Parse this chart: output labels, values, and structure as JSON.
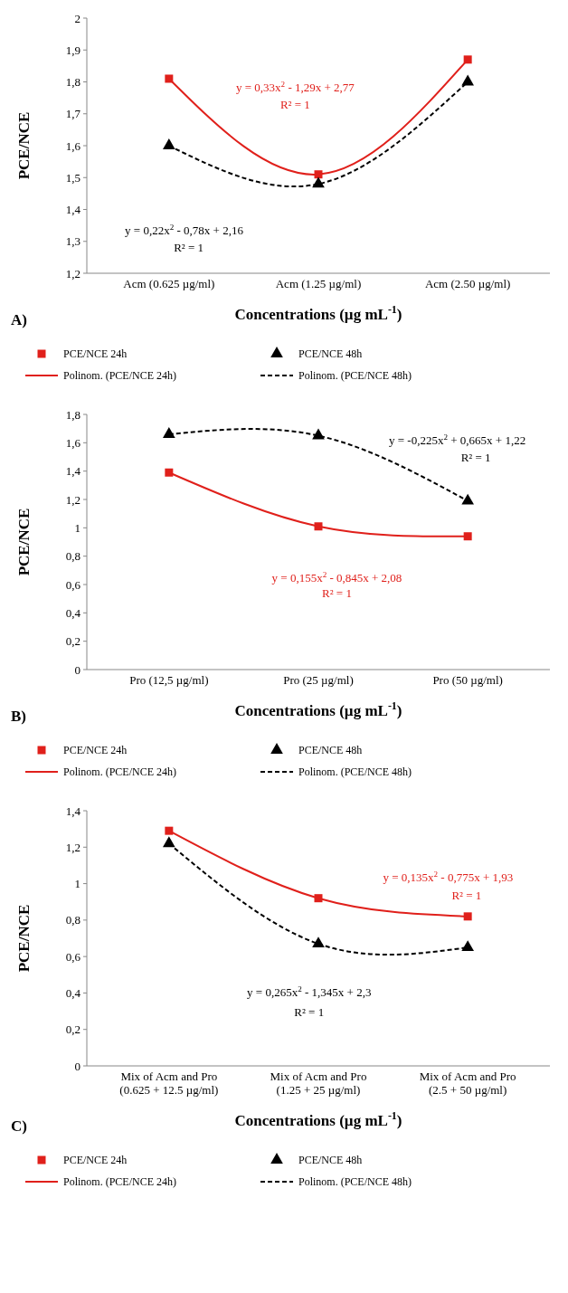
{
  "chart_data": [
    {
      "type": "scatter",
      "title": "A)",
      "xlabel": "Concentrations (µg mL$^{-1}$)",
      "ylabel": "PCE/NCE",
      "categories": [
        "Acm (0.625 µg/ml)",
        "Acm (1.25 µg/ml)",
        "Acm (2.50 µg/ml)"
      ],
      "ylim": [
        1.2,
        2
      ],
      "yticks": [
        {
          "value": 1.2,
          "label": "1,2"
        },
        {
          "value": 1.3,
          "label": "1,3"
        },
        {
          "value": 1.4,
          "label": "1,4"
        },
        {
          "value": 1.5,
          "label": "1,5"
        },
        {
          "value": 1.6,
          "label": "1,6"
        },
        {
          "value": 1.7,
          "label": "1,7"
        },
        {
          "value": 1.8,
          "label": "1,8"
        },
        {
          "value": 1.9,
          "label": "1,9"
        },
        2
      ],
      "legend": "bottom",
      "series": [
        {
          "name": "PCE/NCE 24h",
          "color": "#e0201b",
          "marker": "square",
          "values": [
            1.81,
            1.51,
            1.87
          ]
        },
        {
          "name": "PCE/NCE 48h",
          "color": "#000000",
          "marker": "triangle",
          "values": [
            1.6,
            1.48,
            1.8
          ]
        },
        {
          "name": "Polinom. (PCE/NCE 24h)",
          "type": "line",
          "color": "#e0201b",
          "line_style": "solid",
          "values": [
            1.81,
            1.51,
            1.87
          ]
        },
        {
          "name": "Polinom. (PCE/NCE 48h)",
          "type": "line",
          "color": "#000000",
          "line_style": "dashed",
          "values": [
            1.6,
            1.48,
            1.8
          ]
        }
      ],
      "annotations": [
        "y = 0,33x$^{2}$ - 1,29x + 2,77",
        "R² = 1",
        "y = 0,22x$^{2}$ - 0,78x + 2,16",
        "R² = 1"
      ]
    },
    {
      "type": "scatter",
      "title": "B)",
      "xlabel": "Concentrations (µg mL$^{-1}$)",
      "ylabel": "PCE/NCE",
      "categories": [
        "Pro (12,5 µg/ml)",
        "Pro (25 µg/ml)",
        "Pro (50 µg/ml)"
      ],
      "ylim": [
        0,
        1.8
      ],
      "yticks": [
        0,
        {
          "value": 0.2,
          "label": "0,2"
        },
        {
          "value": 0.4,
          "label": "0,4"
        },
        {
          "value": 0.6,
          "label": "0,6"
        },
        {
          "value": 0.8,
          "label": "0,8"
        },
        1,
        {
          "value": 1.2,
          "label": "1,2"
        },
        {
          "value": 1.4,
          "label": "1,4"
        },
        {
          "value": 1.6,
          "label": "1,6"
        },
        {
          "value": 1.8,
          "label": "1,8"
        }
      ],
      "legend": "bottom",
      "series": [
        {
          "name": "PCE/NCE 24h",
          "color": "#e0201b",
          "marker": "square",
          "values": [
            1.39,
            1.01,
            0.94
          ]
        },
        {
          "name": "PCE/NCE 48h",
          "color": "#000000",
          "marker": "triangle",
          "values": [
            1.66,
            1.65,
            1.19
          ]
        },
        {
          "name": "Polinom. (PCE/NCE 24h)",
          "type": "line",
          "color": "#e0201b",
          "line_style": "solid",
          "values": [
            1.39,
            1.01,
            0.94
          ]
        },
        {
          "name": "Polinom. (PCE/NCE 48h)",
          "type": "line",
          "color": "#000000",
          "line_style": "dashed",
          "values": [
            1.66,
            1.65,
            1.19
          ]
        }
      ],
      "annotations": [
        "y = 0,155x$^{2}$ - 0,845x + 2,08",
        "R² = 1",
        "y = -0,225x$^{2}$ + 0,665x + 1,22",
        "R² = 1"
      ]
    },
    {
      "type": "scatter",
      "title": "C)",
      "xlabel": "Concentrations (µg mL$^{-1}$)",
      "ylabel": "PCE/NCE",
      "categories": [
        "Mix of Acm and Pro\n(0.625 + 12.5 µg/ml)",
        "Mix of Acm and Pro\n(1.25 + 25 µg/ml)",
        "Mix of Acm and Pro\n(2.5 + 50 µg/ml)"
      ],
      "ylim": [
        0,
        1.4
      ],
      "yticks": [
        0,
        {
          "value": 0.2,
          "label": "0,2"
        },
        {
          "value": 0.4,
          "label": "0,4"
        },
        {
          "value": 0.6,
          "label": "0,6"
        },
        {
          "value": 0.8,
          "label": "0,8"
        },
        1,
        {
          "value": 1.2,
          "label": "1,2"
        },
        {
          "value": 1.4,
          "label": "1,4"
        }
      ],
      "legend": "bottom",
      "series": [
        {
          "name": "PCE/NCE 24h",
          "color": "#e0201b",
          "marker": "square",
          "values": [
            1.29,
            0.92,
            0.82
          ]
        },
        {
          "name": "PCE/NCE 48h",
          "color": "#000000",
          "marker": "triangle",
          "values": [
            1.22,
            0.67,
            0.65
          ]
        },
        {
          "name": "Polinom. (PCE/NCE 24h)",
          "type": "line",
          "color": "#e0201b",
          "line_style": "solid",
          "values": [
            1.29,
            0.92,
            0.82
          ]
        },
        {
          "name": "Polinom. (PCE/NCE 48h)",
          "type": "line",
          "color": "#000000",
          "line_style": "dashed",
          "values": [
            1.22,
            0.67,
            0.65
          ]
        }
      ],
      "annotations": [
        "y = 0,135x$^{2}$ - 0,775x + 1,93",
        "R² = 1",
        "y = 0,265x$^{2}$ - 1,345x + 2,3",
        "R² = 1"
      ]
    }
  ]
}
